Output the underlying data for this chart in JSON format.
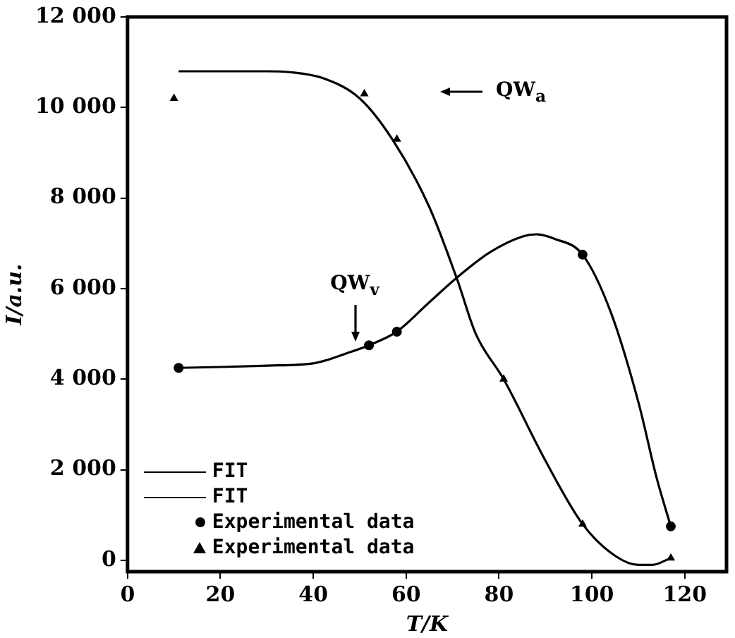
{
  "chart_data": {
    "type": "line",
    "xlabel": "T/K",
    "ylabel": "I/a.u.",
    "xlim": [
      0,
      129
    ],
    "xticks": [
      0,
      20,
      40,
      60,
      80,
      100,
      120
    ],
    "ylim": [
      -250,
      12000
    ],
    "yticks": [
      0,
      {
        "value": 2000,
        "label": "2 000"
      },
      {
        "value": 4000,
        "label": "4 000"
      },
      {
        "value": 6000,
        "label": "6 000"
      },
      {
        "value": 8000,
        "label": "8 000"
      },
      {
        "value": 10000,
        "label": "10 000"
      },
      {
        "value": 12000,
        "label": "12 000"
      }
    ],
    "grid": false,
    "legend": "bottom left",
    "line_style": "solid",
    "series": [
      {
        "name": "FIT",
        "type": "line",
        "marker": "none",
        "color": "#000000",
        "x": [
          11,
          20,
          30,
          35,
          42,
          50,
          57,
          65,
          71,
          75,
          81,
          90,
          98,
          105,
          110,
          113,
          117
        ],
        "values": [
          10800,
          10800,
          10800,
          10780,
          10650,
          10200,
          9300,
          7800,
          6200,
          5000,
          4000,
          2200,
          800,
          100,
          -100,
          -100,
          50
        ]
      },
      {
        "name": "FIT",
        "type": "line",
        "marker": "none",
        "color": "#000000",
        "x": [
          11,
          20,
          30,
          40,
          48,
          52,
          58,
          65,
          71,
          78,
          85,
          88,
          92,
          98,
          104,
          110,
          114,
          117
        ],
        "values": [
          4250,
          4270,
          4300,
          4350,
          4600,
          4750,
          5050,
          5700,
          6250,
          6800,
          7150,
          7200,
          7100,
          6750,
          5500,
          3500,
          1800,
          750
        ]
      },
      {
        "name": "Experimental data",
        "type": "scatter",
        "marker": "circle",
        "color": "#000000",
        "x": [
          11,
          52,
          58,
          98,
          117
        ],
        "values": [
          4250,
          4750,
          5050,
          6750,
          750
        ]
      },
      {
        "name": "Experimental data",
        "type": "scatter",
        "marker": "triangle",
        "color": "#000000",
        "x": [
          10,
          51,
          58,
          81,
          98,
          117
        ],
        "values": [
          10200,
          10300,
          9300,
          4000,
          800,
          50
        ]
      }
    ],
    "annotations": [
      "QW$_{a}$",
      {
        "text": "QW$_{v}$",
        "x": 49,
        "y": 4640
      }
    ]
  }
}
